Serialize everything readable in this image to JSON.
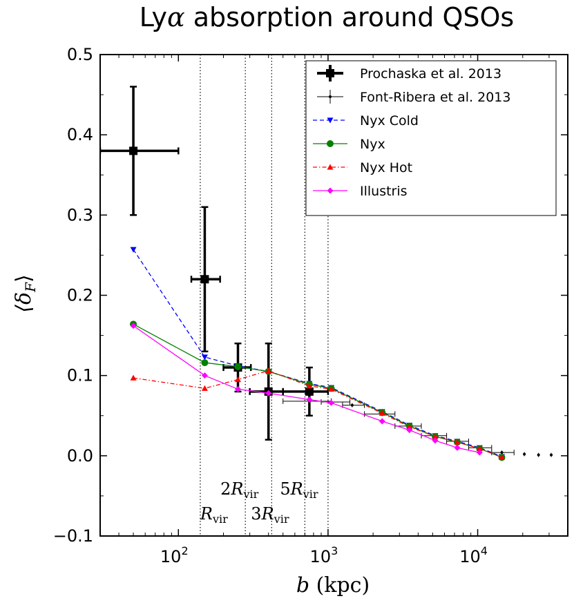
{
  "chart_data": {
    "type": "line",
    "title": "Lyα absorption around QSOs",
    "title_main": "Ly",
    "title_greek": "α",
    "title_rest": " absorption around QSOs",
    "xlabel": "b (kpc)",
    "xlabel_var": "b",
    "xlabel_unit": "(kpc)",
    "ylabel": "⟨δ_F⟩",
    "ylabel_main": "⟨δ",
    "ylabel_sub": "F",
    "ylabel_close": "⟩",
    "xscale": "log",
    "xlim": [
      30,
      40000
    ],
    "ylim": [
      -0.1,
      0.5
    ],
    "yticks": [
      {
        "value": -0.1,
        "label": "−0.1"
      },
      {
        "value": 0.0,
        "label": "0.0"
      },
      {
        "value": 0.1,
        "label": "0.1"
      },
      {
        "value": 0.2,
        "label": "0.2"
      },
      {
        "value": 0.3,
        "label": "0.3"
      },
      {
        "value": 0.4,
        "label": "0.4"
      },
      {
        "value": 0.5,
        "label": "0.5"
      }
    ],
    "xticks": [
      {
        "value": 100,
        "base": "10",
        "exp": "2"
      },
      {
        "value": 1000,
        "base": "10",
        "exp": "3"
      },
      {
        "value": 10000,
        "base": "10",
        "exp": "4"
      }
    ],
    "legend_position": "top-right",
    "series": [
      {
        "name": "Prochaska et al. 2013",
        "style": "errorbar-thick",
        "color": "#000000",
        "points": [
          {
            "x": 50,
            "y": 0.38,
            "xerr": [
              30,
              100
            ],
            "yerr": [
              0.3,
              0.46
            ]
          },
          {
            "x": 150,
            "y": 0.22,
            "xerr": [
              122,
              190
            ],
            "yerr": [
              0.13,
              0.31
            ]
          },
          {
            "x": 250,
            "y": 0.11,
            "xerr": [
              200,
              305
            ],
            "yerr": [
              0.08,
              0.14
            ]
          },
          {
            "x": 400,
            "y": 0.08,
            "xerr": [
              300,
              500
            ],
            "yerr": [
              0.02,
              0.14
            ]
          },
          {
            "x": 750,
            "y": 0.08,
            "xerr": [
              500,
              1000
            ],
            "yerr": [
              0.05,
              0.11
            ]
          }
        ]
      },
      {
        "name": "Font-Ribera et al. 2013",
        "style": "errorbar-thin",
        "color": "#000000",
        "points": [
          {
            "x": 750,
            "y": 0.068,
            "xerr": [
              500,
              1050
            ]
          },
          {
            "x": 1050,
            "y": 0.067,
            "xerr": [
              900,
              1400
            ]
          },
          {
            "x": 1450,
            "y": 0.063,
            "xerr": [
              1250,
              1750
            ]
          },
          {
            "x": 2300,
            "y": 0.052,
            "xerr": [
              1750,
              2800
            ]
          },
          {
            "x": 3500,
            "y": 0.037,
            "xerr": [
              2800,
              4200
            ]
          },
          {
            "x": 5200,
            "y": 0.025,
            "xerr": [
              4200,
              6200
            ]
          },
          {
            "x": 7300,
            "y": 0.018,
            "xerr": [
              6200,
              8700
            ]
          },
          {
            "x": 10300,
            "y": 0.01,
            "xerr": [
              8700,
              12400
            ]
          },
          {
            "x": 14500,
            "y": 0.004,
            "xerr": [
              12400,
              17500
            ]
          },
          {
            "x": 20500,
            "y": 0.002
          },
          {
            "x": 25500,
            "y": 0.001
          },
          {
            "x": 31000,
            "y": 0.001
          }
        ]
      },
      {
        "name": "Nyx Cold",
        "style": "dashed",
        "marker": "triangle-down",
        "color": "#0000ff",
        "x": [
          50,
          150,
          250,
          400,
          750,
          1050,
          2300,
          3500,
          5200,
          7300,
          10300,
          14500
        ],
        "y": [
          0.257,
          0.123,
          0.112,
          0.105,
          0.09,
          0.085,
          0.055,
          0.038,
          0.025,
          0.018,
          0.01,
          -0.001
        ]
      },
      {
        "name": "Nyx",
        "style": "solid",
        "marker": "circle",
        "color": "#008000",
        "x": [
          50,
          150,
          250,
          400,
          750,
          1050,
          2300,
          3500,
          5200,
          7300,
          10300,
          14500
        ],
        "y": [
          0.164,
          0.116,
          0.111,
          0.105,
          0.089,
          0.084,
          0.054,
          0.037,
          0.024,
          0.017,
          0.009,
          -0.002
        ]
      },
      {
        "name": "Nyx Hot",
        "style": "dashdot",
        "marker": "triangle-up",
        "color": "#ff0000",
        "x": [
          50,
          150,
          250,
          400,
          750,
          1050,
          2300,
          3500,
          5200,
          7300,
          10300,
          14500
        ],
        "y": [
          0.097,
          0.084,
          0.095,
          0.106,
          0.087,
          0.083,
          0.053,
          0.036,
          0.024,
          0.017,
          0.009,
          -0.002
        ]
      },
      {
        "name": "Illustris",
        "style": "solid",
        "marker": "diamond",
        "color": "#ff00ff",
        "x": [
          50,
          150,
          250,
          400,
          750,
          1050,
          2300,
          3500,
          5200,
          7300,
          10300
        ],
        "y": [
          0.162,
          0.1,
          0.083,
          0.078,
          0.07,
          0.066,
          0.043,
          0.032,
          0.019,
          0.01,
          0.004
        ]
      }
    ],
    "vlines": [
      {
        "x": 140,
        "label_main": "R",
        "label_mult": "",
        "label_sub": "vir",
        "label_row": "lower"
      },
      {
        "x": 280,
        "label_main": "R",
        "label_mult": "2",
        "label_sub": "vir",
        "label_row": "upper"
      },
      {
        "x": 420,
        "label_main": "R",
        "label_mult": "3",
        "label_sub": "vir",
        "label_row": "lower"
      },
      {
        "x": 700,
        "label_main": "R",
        "label_mult": "5",
        "label_sub": "vir",
        "label_row": "upper"
      },
      {
        "x": 1000,
        "label_main": "",
        "label_mult": "",
        "label_sub": "",
        "label_row": "none"
      }
    ]
  }
}
